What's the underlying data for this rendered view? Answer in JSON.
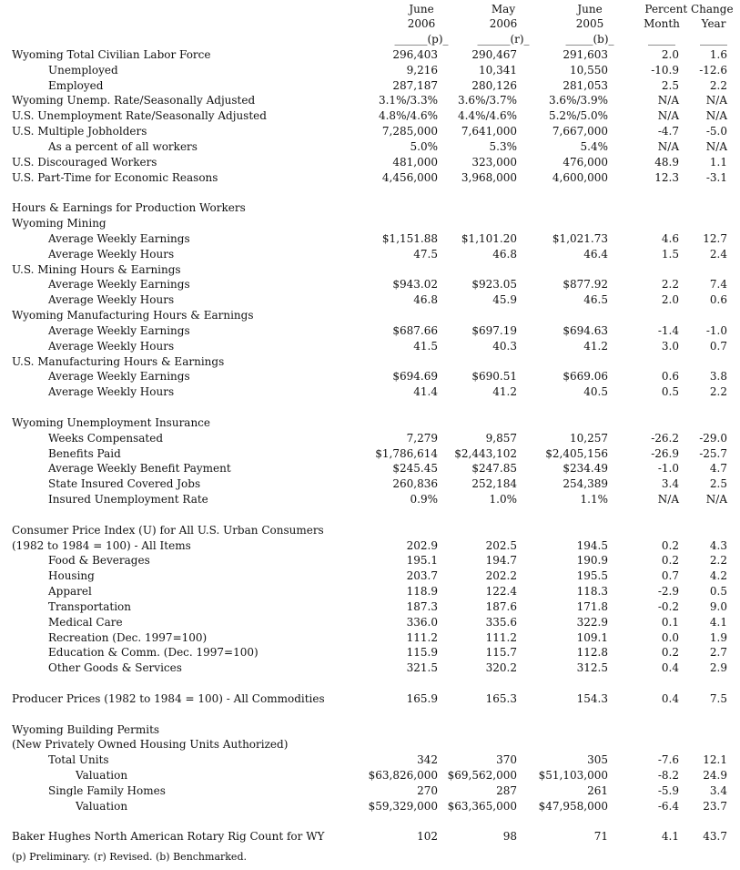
{
  "header": {
    "columns": [
      [
        "June",
        "2006",
        "______(p)_"
      ],
      [
        "May",
        "2006",
        "______(r)_"
      ],
      [
        "June",
        "2005",
        "_____(b)_"
      ]
    ],
    "percent_change": {
      "title": "Percent Change",
      "columns": [
        [
          "Month",
          "_____"
        ],
        [
          "Year",
          "_____"
        ]
      ]
    }
  },
  "sections": [
    {
      "rows": [
        {
          "label": "Wyoming Total Civilian Labor Force",
          "values": [
            "296,403",
            "290,467",
            "291,603",
            "2.0",
            "1.6"
          ],
          "items": [
            {
              "label": "Unemployed",
              "values": [
                "9,216",
                "10,341",
                "10,550",
                "-10.9",
                "-12.6"
              ]
            },
            {
              "label": "Employed",
              "values": [
                "287,187",
                "280,126",
                "281,053",
                "2.5",
                "2.2"
              ]
            }
          ]
        },
        {
          "label": "Wyoming Unemp. Rate/Seasonally Adjusted",
          "values": [
            "3.1%/3.3%",
            "3.6%/3.7%",
            "3.6%/3.9%",
            "N/A",
            "N/A"
          ]
        },
        {
          "label": "U.S. Unemployment Rate/Seasonally Adjusted",
          "values": [
            "4.8%/4.6%",
            "4.4%/4.6%",
            "5.2%/5.0%",
            "N/A",
            "N/A"
          ]
        },
        {
          "label": "U.S. Multiple Jobholders",
          "values": [
            "7,285,000",
            "7,641,000",
            "7,667,000",
            "-4.7",
            "-5.0"
          ],
          "items": [
            {
              "label": "As a percent of all workers",
              "values": [
                "5.0%",
                "5.3%",
                "5.4%",
                "N/A",
                "N/A"
              ]
            }
          ]
        },
        {
          "label": "U.S. Discouraged Workers",
          "values": [
            "481,000",
            "323,000",
            "476,000",
            "48.9",
            "1.1"
          ]
        },
        {
          "label": "U.S. Part-Time for Economic Reasons",
          "values": [
            "4,456,000",
            "3,968,000",
            "4,600,000",
            "12.3",
            "-3.1"
          ]
        }
      ]
    },
    {
      "rows": [
        {
          "label": "Hours & Earnings for Production Workers"
        },
        {
          "label": "Wyoming Mining",
          "items": [
            {
              "label": "Average Weekly Earnings",
              "values": [
                "$1,151.88",
                "$1,101.20",
                "$1,021.73",
                "4.6",
                "12.7"
              ]
            },
            {
              "label": "Average Weekly Hours",
              "values": [
                "47.5",
                "46.8",
                "46.4",
                "1.5",
                "2.4"
              ]
            }
          ]
        },
        {
          "label": "U.S. Mining Hours & Earnings",
          "items": [
            {
              "label": "Average Weekly Earnings",
              "values": [
                "$943.02",
                "$923.05",
                "$877.92",
                "2.2",
                "7.4"
              ]
            },
            {
              "label": "Average Weekly Hours",
              "values": [
                "46.8",
                "45.9",
                "46.5",
                "2.0",
                "0.6"
              ]
            }
          ]
        },
        {
          "label": "Wyoming Manufacturing Hours & Earnings",
          "items": [
            {
              "label": "Average Weekly Earnings",
              "values": [
                "$687.66",
                "$697.19",
                "$694.63",
                "-1.4",
                "-1.0"
              ]
            },
            {
              "label": "Average Weekly Hours",
              "values": [
                "41.5",
                "40.3",
                "41.2",
                "3.0",
                "0.7"
              ]
            }
          ]
        },
        {
          "label": "U.S. Manufacturing Hours & Earnings",
          "items": [
            {
              "label": "Average Weekly Earnings",
              "values": [
                "$694.69",
                "$690.51",
                "$669.06",
                "0.6",
                "3.8"
              ]
            },
            {
              "label": "Average Weekly Hours",
              "values": [
                "41.4",
                "41.2",
                "40.5",
                "0.5",
                "2.2"
              ]
            }
          ]
        }
      ]
    },
    {
      "rows": [
        {
          "label": "Wyoming Unemployment Insurance",
          "items": [
            {
              "label": "Weeks Compensated",
              "values": [
                "7,279",
                "9,857",
                "10,257",
                "-26.2",
                "-29.0"
              ]
            },
            {
              "label": "Benefits Paid",
              "values": [
                "$1,786,614",
                "$2,443,102",
                "$2,405,156",
                "-26.9",
                "-25.7"
              ]
            },
            {
              "label": "Average Weekly Benefit Payment",
              "values": [
                "$245.45",
                "$247.85",
                "$234.49",
                "-1.0",
                "4.7"
              ]
            },
            {
              "label": "State Insured Covered Jobs",
              "values": [
                "260,836",
                "252,184",
                "254,389",
                "3.4",
                "2.5"
              ]
            },
            {
              "label": "Insured Unemployment Rate",
              "values": [
                "0.9%",
                "1.0%",
                "1.1%",
                "N/A",
                "N/A"
              ]
            }
          ]
        }
      ]
    },
    {
      "rows": [
        {
          "label": "Consumer Price Index (U) for All U.S. Urban Consumers"
        },
        {
          "label": "(1982 to 1984 = 100) - All Items",
          "values": [
            "202.9",
            "202.5",
            "194.5",
            "0.2",
            "4.3"
          ],
          "items": [
            {
              "label": "Food & Beverages",
              "values": [
                "195.1",
                "194.7",
                "190.9",
                "0.2",
                "2.2"
              ]
            },
            {
              "label": "Housing",
              "values": [
                "203.7",
                "202.2",
                "195.5",
                "0.7",
                "4.2"
              ]
            },
            {
              "label": "Apparel",
              "values": [
                "118.9",
                "122.4",
                "118.3",
                "-2.9",
                "0.5"
              ]
            },
            {
              "label": "Transportation",
              "values": [
                "187.3",
                "187.6",
                "171.8",
                "-0.2",
                "9.0"
              ]
            },
            {
              "label": "Medical Care",
              "values": [
                "336.0",
                "335.6",
                "322.9",
                "0.1",
                "4.1"
              ]
            },
            {
              "label": "Recreation (Dec. 1997=100)",
              "values": [
                "111.2",
                "111.2",
                "109.1",
                "0.0",
                "1.9"
              ]
            },
            {
              "label": "Education & Comm. (Dec. 1997=100)",
              "values": [
                "115.9",
                "115.7",
                "112.8",
                "0.2",
                "2.7"
              ]
            },
            {
              "label": "Other Goods & Services",
              "values": [
                "321.5",
                "320.2",
                "312.5",
                "0.4",
                "2.9"
              ]
            }
          ]
        }
      ]
    },
    {
      "rows": [
        {
          "label": "Producer Prices (1982 to 1984 = 100) - All Commodities",
          "values": [
            "165.9",
            "165.3",
            "154.3",
            "0.4",
            "7.5"
          ]
        }
      ]
    },
    {
      "rows": [
        {
          "label": "Wyoming Building Permits"
        },
        {
          "label": "(New Privately Owned Housing Units Authorized)",
          "items": [
            {
              "label": "Total Units",
              "values": [
                "342",
                "370",
                "305",
                "-7.6",
                "12.1"
              ],
              "items": [
                {
                  "label": "Valuation",
                  "values": [
                    "$63,826,000",
                    "$69,562,000",
                    "$51,103,000",
                    "-8.2",
                    "24.9"
                  ]
                }
              ]
            },
            {
              "label": "Single Family Homes",
              "values": [
                "270",
                "287",
                "261",
                "-5.9",
                "3.4"
              ],
              "items": [
                {
                  "label": "Valuation",
                  "values": [
                    "$59,329,000",
                    "$63,365,000",
                    "$47,958,000",
                    "-6.4",
                    "23.7"
                  ]
                }
              ]
            }
          ]
        }
      ]
    },
    {
      "rows": [
        {
          "label": "Baker Hughes North American Rotary Rig Count for WY",
          "values": [
            "102",
            "98",
            "71",
            "4.1",
            "43.7"
          ]
        }
      ]
    }
  ],
  "footnote": "(p) Preliminary. (r) Revised. (b) Benchmarked."
}
